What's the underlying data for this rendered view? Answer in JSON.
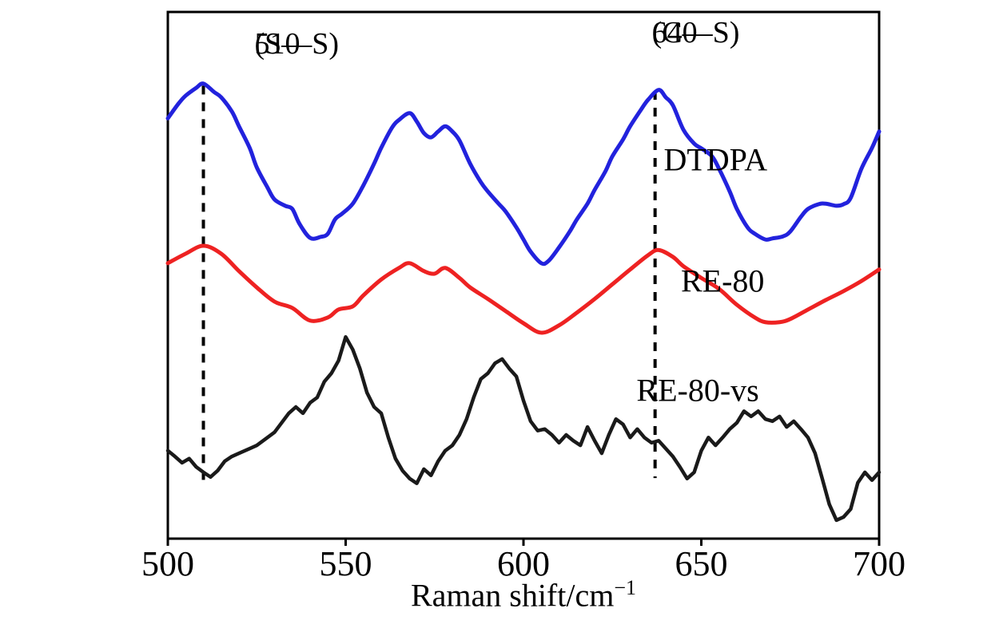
{
  "chart_data": {
    "type": "line",
    "title": "",
    "xlabel": "Raman shift/cm⁻¹",
    "xlabel_main": "Raman shift/cm",
    "xlabel_sup": "−1",
    "ylabel": "",
    "xlim": [
      500,
      700
    ],
    "x_ticks": [
      500,
      550,
      600,
      650,
      700
    ],
    "grid": false,
    "legend_position": "inline-right-of-curves",
    "annotations": [
      {
        "x": 510,
        "label": "510",
        "sublabel": "(S—S)",
        "label_dx": 64,
        "label_top": 34,
        "line_span_n": [
          11,
          86
        ]
      },
      {
        "x": 637,
        "label": "640",
        "sublabel": "(C—S)",
        "label_dx": -4,
        "label_top": 20,
        "line_span_n": [
          11.5,
          85
        ]
      }
    ],
    "series": [
      {
        "name": "DTDPA",
        "color": "#2222dd",
        "width": 5,
        "smooth": true,
        "label_at": {
          "x": 654,
          "n": 72
        },
        "points": [
          [
            500,
            79.8
          ],
          [
            503,
            82.6
          ],
          [
            505,
            84.1
          ],
          [
            508,
            85.6
          ],
          [
            510,
            86.4
          ],
          [
            513,
            84.8
          ],
          [
            515,
            83.8
          ],
          [
            518,
            81.1
          ],
          [
            520,
            78.3
          ],
          [
            523,
            74.2
          ],
          [
            525,
            70.5
          ],
          [
            528,
            66.7
          ],
          [
            530,
            64.4
          ],
          [
            533,
            63.2
          ],
          [
            535,
            62.6
          ],
          [
            537,
            59.8
          ],
          [
            540,
            57.1
          ],
          [
            543,
            57.3
          ],
          [
            545,
            57.9
          ],
          [
            547,
            60.6
          ],
          [
            549,
            61.7
          ],
          [
            552,
            63.6
          ],
          [
            555,
            67.1
          ],
          [
            558,
            71.2
          ],
          [
            560,
            74.2
          ],
          [
            563,
            78
          ],
          [
            565,
            79.5
          ],
          [
            568,
            80.8
          ],
          [
            570,
            79.2
          ],
          [
            572,
            77
          ],
          [
            574,
            76.2
          ],
          [
            576,
            77.3
          ],
          [
            578,
            78.3
          ],
          [
            580,
            77.3
          ],
          [
            582,
            75.6
          ],
          [
            585,
            71.2
          ],
          [
            588,
            67.7
          ],
          [
            590,
            65.9
          ],
          [
            593,
            63.6
          ],
          [
            595,
            62.1
          ],
          [
            598,
            59.1
          ],
          [
            600,
            56.8
          ],
          [
            602,
            54.5
          ],
          [
            605,
            52.3
          ],
          [
            607,
            52.7
          ],
          [
            610,
            55.3
          ],
          [
            613,
            58.3
          ],
          [
            615,
            60.6
          ],
          [
            618,
            63.6
          ],
          [
            620,
            66.2
          ],
          [
            623,
            69.7
          ],
          [
            625,
            72.6
          ],
          [
            628,
            75.8
          ],
          [
            630,
            78.3
          ],
          [
            633,
            81.4
          ],
          [
            635,
            83.3
          ],
          [
            638,
            85.2
          ],
          [
            640,
            83.8
          ],
          [
            642,
            82.3
          ],
          [
            645,
            77.6
          ],
          [
            648,
            75
          ],
          [
            650,
            74.1
          ],
          [
            653,
            72.6
          ],
          [
            655,
            70.2
          ],
          [
            658,
            65.9
          ],
          [
            660,
            62.6
          ],
          [
            663,
            59.1
          ],
          [
            665,
            57.9
          ],
          [
            668,
            56.8
          ],
          [
            670,
            57
          ],
          [
            673,
            57.4
          ],
          [
            675,
            58.3
          ],
          [
            678,
            61.1
          ],
          [
            680,
            62.6
          ],
          [
            683,
            63.5
          ],
          [
            685,
            63.6
          ],
          [
            688,
            63.2
          ],
          [
            690,
            63.5
          ],
          [
            692,
            64.7
          ],
          [
            695,
            70.2
          ],
          [
            698,
            74.2
          ],
          [
            700,
            77.3
          ]
        ]
      },
      {
        "name": "RE-80",
        "color": "#ee2222",
        "width": 5,
        "smooth": true,
        "label_at": {
          "x": 656,
          "n": 48.9
        },
        "points": [
          [
            500,
            52.3
          ],
          [
            505,
            54.1
          ],
          [
            510,
            55.6
          ],
          [
            515,
            54.1
          ],
          [
            520,
            50.8
          ],
          [
            525,
            47.7
          ],
          [
            530,
            45
          ],
          [
            535,
            43.8
          ],
          [
            540,
            41.4
          ],
          [
            545,
            42
          ],
          [
            548,
            43.5
          ],
          [
            552,
            44.1
          ],
          [
            555,
            46.2
          ],
          [
            560,
            49.2
          ],
          [
            565,
            51.4
          ],
          [
            568,
            52.3
          ],
          [
            572,
            50.8
          ],
          [
            575,
            50.3
          ],
          [
            578,
            51.4
          ],
          [
            582,
            49.5
          ],
          [
            585,
            47.7
          ],
          [
            590,
            45.5
          ],
          [
            595,
            43.2
          ],
          [
            600,
            40.9
          ],
          [
            605,
            39.1
          ],
          [
            610,
            40.5
          ],
          [
            615,
            42.9
          ],
          [
            620,
            45.5
          ],
          [
            625,
            48.3
          ],
          [
            630,
            51.1
          ],
          [
            635,
            53.8
          ],
          [
            638,
            54.8
          ],
          [
            642,
            53.5
          ],
          [
            645,
            51.7
          ],
          [
            650,
            49.5
          ],
          [
            655,
            47.4
          ],
          [
            660,
            44.4
          ],
          [
            665,
            42
          ],
          [
            668,
            41.1
          ],
          [
            672,
            41.1
          ],
          [
            675,
            41.7
          ],
          [
            680,
            43.5
          ],
          [
            685,
            45.3
          ],
          [
            690,
            47
          ],
          [
            695,
            48.9
          ],
          [
            700,
            51.1
          ]
        ]
      },
      {
        "name": "RE-80-vs",
        "color": "#1a1a1a",
        "width": 4.5,
        "smooth": false,
        "label_at": {
          "x": 649,
          "n": 28.2
        },
        "points": [
          [
            500,
            16.7
          ],
          [
            502,
            15.6
          ],
          [
            504,
            14.4
          ],
          [
            506,
            15.2
          ],
          [
            508,
            13.6
          ],
          [
            510,
            12.6
          ],
          [
            512,
            11.7
          ],
          [
            514,
            12.9
          ],
          [
            516,
            14.7
          ],
          [
            518,
            15.6
          ],
          [
            520,
            16.2
          ],
          [
            523,
            17.1
          ],
          [
            525,
            17.7
          ],
          [
            528,
            19.2
          ],
          [
            530,
            20.2
          ],
          [
            532,
            22
          ],
          [
            534,
            23.8
          ],
          [
            536,
            25
          ],
          [
            538,
            23.8
          ],
          [
            540,
            25.8
          ],
          [
            542,
            26.8
          ],
          [
            544,
            29.8
          ],
          [
            546,
            31.4
          ],
          [
            548,
            33.8
          ],
          [
            550,
            38.3
          ],
          [
            552,
            35.9
          ],
          [
            554,
            32.3
          ],
          [
            556,
            27.7
          ],
          [
            558,
            25
          ],
          [
            560,
            23.8
          ],
          [
            562,
            19.2
          ],
          [
            564,
            15.2
          ],
          [
            566,
            12.9
          ],
          [
            568,
            11.4
          ],
          [
            570,
            10.5
          ],
          [
            572,
            13.2
          ],
          [
            574,
            12
          ],
          [
            576,
            14.7
          ],
          [
            578,
            16.7
          ],
          [
            580,
            17.7
          ],
          [
            582,
            19.7
          ],
          [
            584,
            22.7
          ],
          [
            586,
            26.8
          ],
          [
            588,
            30.3
          ],
          [
            590,
            31.4
          ],
          [
            592,
            33.3
          ],
          [
            594,
            34.1
          ],
          [
            596,
            32.3
          ],
          [
            598,
            30.8
          ],
          [
            600,
            26.2
          ],
          [
            602,
            22.3
          ],
          [
            604,
            20.5
          ],
          [
            606,
            20.8
          ],
          [
            608,
            19.7
          ],
          [
            610,
            18.2
          ],
          [
            612,
            19.7
          ],
          [
            614,
            18.6
          ],
          [
            616,
            17.7
          ],
          [
            618,
            21.2
          ],
          [
            620,
            18.6
          ],
          [
            622,
            16.2
          ],
          [
            624,
            19.7
          ],
          [
            626,
            22.7
          ],
          [
            628,
            21.7
          ],
          [
            630,
            19.2
          ],
          [
            632,
            20.8
          ],
          [
            634,
            19.2
          ],
          [
            636,
            18.2
          ],
          [
            638,
            18.6
          ],
          [
            640,
            17.1
          ],
          [
            642,
            15.6
          ],
          [
            644,
            13.6
          ],
          [
            646,
            11.4
          ],
          [
            648,
            12.6
          ],
          [
            650,
            16.7
          ],
          [
            652,
            19.2
          ],
          [
            654,
            17.7
          ],
          [
            656,
            19.2
          ],
          [
            658,
            20.8
          ],
          [
            660,
            22
          ],
          [
            662,
            24.2
          ],
          [
            664,
            23.2
          ],
          [
            666,
            24.2
          ],
          [
            668,
            22.7
          ],
          [
            670,
            22.3
          ],
          [
            672,
            23.2
          ],
          [
            674,
            21.2
          ],
          [
            676,
            22.3
          ],
          [
            678,
            20.8
          ],
          [
            680,
            19.2
          ],
          [
            682,
            16.2
          ],
          [
            684,
            11.4
          ],
          [
            686,
            6.5
          ],
          [
            688,
            3.5
          ],
          [
            690,
            4.1
          ],
          [
            692,
            5.6
          ],
          [
            694,
            10.6
          ],
          [
            696,
            12.6
          ],
          [
            698,
            11.1
          ],
          [
            700,
            12.6
          ]
        ]
      }
    ]
  }
}
